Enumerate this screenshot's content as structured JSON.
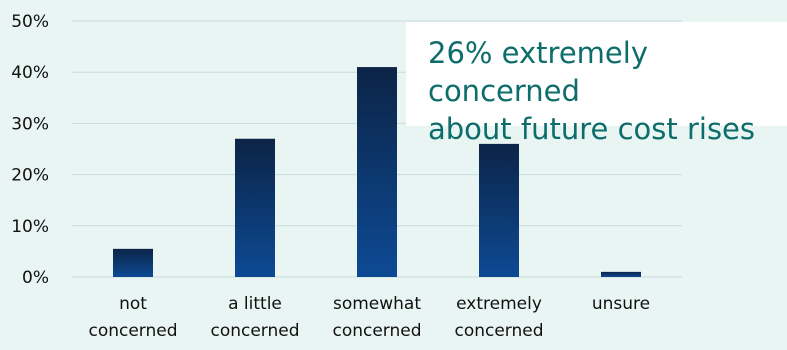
{
  "chart_data": {
    "type": "bar",
    "categories": [
      [
        "not",
        "concerned"
      ],
      [
        "a little",
        "concerned"
      ],
      [
        "somewhat",
        "concerned"
      ],
      [
        "extremely",
        "concerned"
      ],
      [
        "unsure"
      ]
    ],
    "values": [
      5.5,
      27,
      41,
      26,
      1
    ],
    "ylim": [
      0,
      50
    ],
    "y_ticks": [
      "0%",
      "10%",
      "20%",
      "30%",
      "40%",
      "50%"
    ],
    "grid": true,
    "bar_color_top": "#0c2447",
    "bar_color_bottom": "#0d4a94"
  },
  "annotation": {
    "line1": "26% extremely concerned",
    "line2": "about future cost rises",
    "color": "#0d6d6a"
  }
}
